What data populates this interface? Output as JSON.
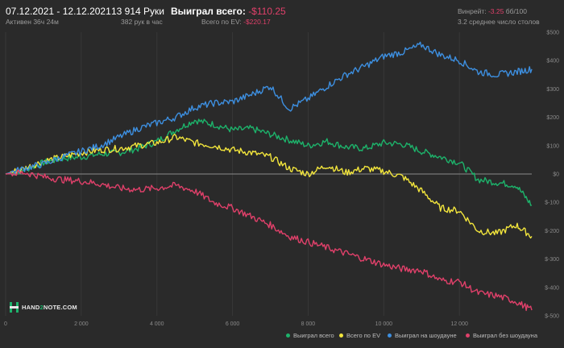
{
  "header": {
    "date_range": "07.12.2021 - 12.12.2021",
    "active": "Активен 36ч 24м",
    "hands": "13 914 Руки",
    "hands_per_hour": "382 рук в час",
    "won_total_label": "Выиграл всего:",
    "won_total_value": "-$110.25",
    "ev_label": "Всего по EV:",
    "ev_value": "-$220.17",
    "winrate_label": "Винрейт:",
    "winrate_value": "-3.25",
    "winrate_unit": "бб/100",
    "avg_tables": "3.2 среднее число столов"
  },
  "logo": {
    "text_left": "HAND",
    "text_mid": "2",
    "text_right": "NOTE.COM"
  },
  "colors": {
    "background": "#2a2a2a",
    "won_total": "#1db36b",
    "ev": "#f2e53c",
    "showdown": "#3d8fe0",
    "non_showdown": "#e0406a",
    "zero_line": "#8a8a8a",
    "grid": "#383838"
  },
  "chart_data": {
    "type": "line",
    "xlim": [
      0,
      13914
    ],
    "ylim": [
      -500,
      500
    ],
    "x_ticks": [
      0,
      2000,
      4000,
      6000,
      8000,
      10000,
      12000
    ],
    "x_tick_labels": [
      "0",
      "2 000",
      "4 000",
      "6 000",
      "8 000",
      "10 000",
      "12 000"
    ],
    "y_ticks": [
      500,
      400,
      300,
      200,
      100,
      0,
      -100,
      -200,
      -300,
      -400,
      -500
    ],
    "y_tick_labels": [
      "$500",
      "$400",
      "$300",
      "$200",
      "$100",
      "$0",
      "$-100",
      "$-200",
      "$-300",
      "$-400",
      "$-500"
    ],
    "series": [
      {
        "name": "Выиграл всего",
        "color_key": "won_total",
        "points": [
          [
            0,
            0
          ],
          [
            500,
            15
          ],
          [
            1000,
            40
          ],
          [
            1500,
            55
          ],
          [
            2000,
            60
          ],
          [
            2500,
            70
          ],
          [
            3000,
            75
          ],
          [
            3500,
            90
          ],
          [
            4000,
            115
          ],
          [
            4500,
            155
          ],
          [
            5000,
            190
          ],
          [
            5500,
            175
          ],
          [
            6000,
            155
          ],
          [
            6500,
            160
          ],
          [
            7000,
            140
          ],
          [
            7500,
            120
          ],
          [
            8000,
            100
          ],
          [
            8500,
            115
          ],
          [
            9000,
            95
          ],
          [
            9500,
            90
          ],
          [
            10000,
            110
          ],
          [
            10500,
            105
          ],
          [
            11000,
            80
          ],
          [
            11500,
            60
          ],
          [
            12000,
            40
          ],
          [
            12500,
            -20
          ],
          [
            13000,
            -30
          ],
          [
            13500,
            -40
          ],
          [
            13914,
            -110
          ]
        ]
      },
      {
        "name": "Всего по EV",
        "color_key": "ev",
        "points": [
          [
            0,
            0
          ],
          [
            500,
            20
          ],
          [
            1000,
            45
          ],
          [
            1500,
            60
          ],
          [
            2000,
            75
          ],
          [
            2500,
            85
          ],
          [
            3000,
            90
          ],
          [
            3500,
            100
          ],
          [
            4000,
            110
          ],
          [
            4500,
            130
          ],
          [
            5000,
            110
          ],
          [
            5500,
            100
          ],
          [
            6000,
            85
          ],
          [
            6500,
            75
          ],
          [
            7000,
            60
          ],
          [
            7500,
            20
          ],
          [
            8000,
            0
          ],
          [
            8500,
            30
          ],
          [
            9000,
            5
          ],
          [
            9500,
            20
          ],
          [
            10000,
            10
          ],
          [
            10500,
            -10
          ],
          [
            11000,
            -60
          ],
          [
            11500,
            -120
          ],
          [
            12000,
            -130
          ],
          [
            12500,
            -200
          ],
          [
            13000,
            -210
          ],
          [
            13500,
            -180
          ],
          [
            13914,
            -220
          ]
        ]
      },
      {
        "name": "Выиграл на шоудауне",
        "color_key": "showdown",
        "points": [
          [
            0,
            0
          ],
          [
            500,
            20
          ],
          [
            1000,
            35
          ],
          [
            1500,
            60
          ],
          [
            2000,
            80
          ],
          [
            2500,
            100
          ],
          [
            3000,
            130
          ],
          [
            3500,
            160
          ],
          [
            4000,
            180
          ],
          [
            4500,
            200
          ],
          [
            5000,
            235
          ],
          [
            5500,
            250
          ],
          [
            6000,
            255
          ],
          [
            6500,
            280
          ],
          [
            7000,
            310
          ],
          [
            7500,
            230
          ],
          [
            8000,
            265
          ],
          [
            8500,
            310
          ],
          [
            9000,
            350
          ],
          [
            9500,
            380
          ],
          [
            10000,
            415
          ],
          [
            10500,
            430
          ],
          [
            11000,
            455
          ],
          [
            11500,
            420
          ],
          [
            12000,
            400
          ],
          [
            12500,
            360
          ],
          [
            13000,
            350
          ],
          [
            13500,
            360
          ],
          [
            13914,
            370
          ]
        ]
      },
      {
        "name": "Выиграл без шоудауна",
        "color_key": "non_showdown",
        "points": [
          [
            0,
            0
          ],
          [
            500,
            5
          ],
          [
            1000,
            -10
          ],
          [
            1500,
            -20
          ],
          [
            2000,
            -25
          ],
          [
            2500,
            -35
          ],
          [
            3000,
            -50
          ],
          [
            3500,
            -55
          ],
          [
            4000,
            -50
          ],
          [
            4500,
            -40
          ],
          [
            5000,
            -60
          ],
          [
            5500,
            -100
          ],
          [
            6000,
            -120
          ],
          [
            6500,
            -150
          ],
          [
            7000,
            -180
          ],
          [
            7500,
            -220
          ],
          [
            8000,
            -240
          ],
          [
            8500,
            -260
          ],
          [
            9000,
            -280
          ],
          [
            9500,
            -300
          ],
          [
            10000,
            -320
          ],
          [
            10500,
            -335
          ],
          [
            11000,
            -340
          ],
          [
            11500,
            -375
          ],
          [
            12000,
            -380
          ],
          [
            12500,
            -420
          ],
          [
            13000,
            -430
          ],
          [
            13500,
            -450
          ],
          [
            13914,
            -480
          ]
        ]
      }
    ]
  }
}
